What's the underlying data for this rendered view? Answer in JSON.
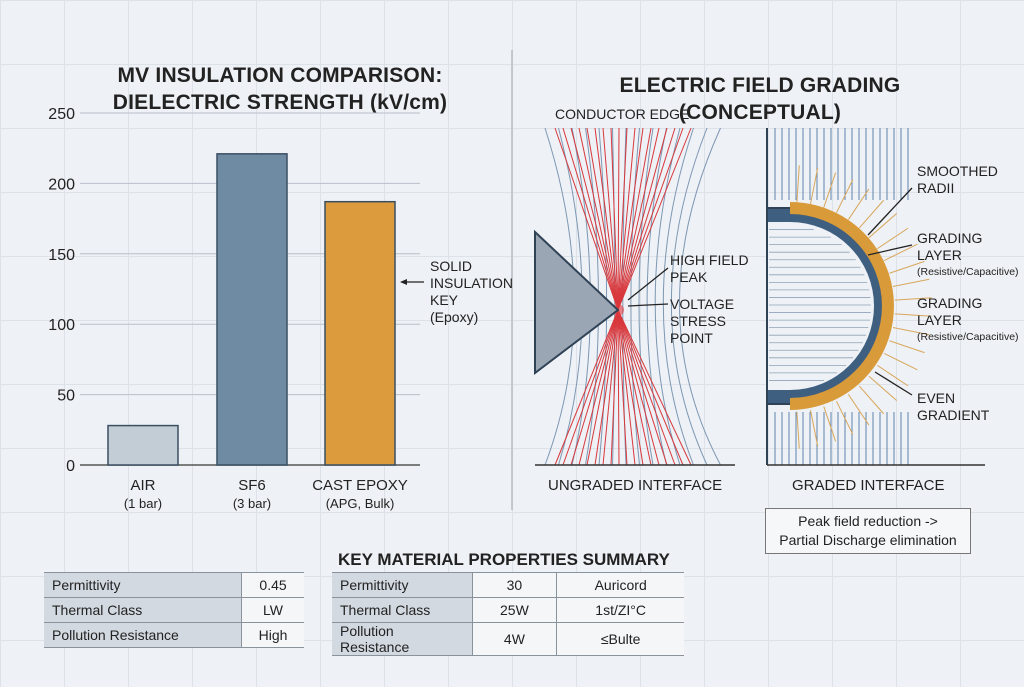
{
  "chart_data": {
    "type": "bar",
    "title": "MV INSULATION COMPARISON: DIELECTRIC STRENGTH (kV/cm)",
    "title_lines": [
      "MV INSULATION COMPARISON:",
      "DIELECTRIC STRENGTH (kV/cm)"
    ],
    "categories": [
      [
        "AIR",
        "(1 bar)"
      ],
      [
        "SF6",
        "(3 bar)"
      ],
      [
        "CAST EPOXY",
        "(APG, Bulk)"
      ]
    ],
    "values": [
      28,
      221,
      187
    ],
    "colors": [
      "#c3cdd6",
      "#6f8aa3",
      "#dc9b3c"
    ],
    "ylim": [
      0,
      250
    ],
    "yticks": [
      0,
      50,
      100,
      150,
      200,
      250
    ],
    "grid": true,
    "annotation": [
      "SOLID",
      "INSULATION",
      "KEY",
      "(Epoxy)"
    ]
  },
  "diagram": {
    "title_lines": [
      "ELECTRIC FIELD GRADING",
      "(CONCEPTUAL)"
    ],
    "left": {
      "top_label": "CONDUCTOR EDGE",
      "high_field": [
        "HIGH FIELD",
        "PEAK"
      ],
      "stress": [
        "VOLTAGE",
        "STRESS",
        "POINT"
      ],
      "bottom_label": "UNGRADED INTERFACE"
    },
    "right": {
      "smoothed": [
        "SMOOTHED",
        "RADII"
      ],
      "grading1": "GRADING LAYER",
      "grading1_sub": "(Resistive/Capacitive)",
      "grading2": [
        "GRADING",
        "LAYER"
      ],
      "grading2_sub": "(Resistive/Capacitive)",
      "even": [
        "EVEN",
        "GRADIENT"
      ],
      "bottom_label": "GRADED INTERFACE",
      "caption": [
        "Peak field reduction ->",
        "Partial Discharge elimination"
      ]
    }
  },
  "summary": {
    "title": "KEY MATERIAL PROPERTIES SUMMARY",
    "table1": [
      [
        "Permittivity",
        "0.45"
      ],
      [
        "Thermal Class",
        "LW"
      ],
      [
        "Pollution Resistance",
        "High"
      ]
    ],
    "table2": [
      [
        "Permittivity",
        "30",
        "Auricord"
      ],
      [
        "Thermal Class",
        "25W",
        "1st/ZI°C"
      ],
      [
        "Pollution Resistance",
        "4W",
        "≤Bulte"
      ]
    ]
  }
}
